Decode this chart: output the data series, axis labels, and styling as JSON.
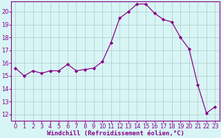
{
  "x": [
    0,
    1,
    2,
    3,
    4,
    5,
    6,
    7,
    8,
    9,
    10,
    11,
    12,
    13,
    14,
    15,
    16,
    17,
    18,
    19,
    20,
    21,
    22,
    23
  ],
  "y": [
    15.6,
    15.0,
    15.4,
    15.2,
    15.4,
    15.4,
    15.9,
    15.4,
    15.5,
    15.6,
    16.1,
    17.6,
    19.5,
    20.0,
    20.6,
    20.6,
    19.9,
    19.4,
    19.2,
    18.0,
    17.1,
    14.3,
    12.1,
    12.6
  ],
  "line_color": "#880088",
  "marker": "D",
  "marker_size": 2.2,
  "bg_color": "#d8f5f5",
  "grid_color": "#b0c8c8",
  "xlabel": "Windchill (Refroidissement éolien,°C)",
  "xlim": [
    -0.5,
    23.5
  ],
  "ylim": [
    11.5,
    20.8
  ],
  "yticks": [
    12,
    13,
    14,
    15,
    16,
    17,
    18,
    19,
    20
  ],
  "xticks": [
    0,
    1,
    2,
    3,
    4,
    5,
    6,
    7,
    8,
    9,
    10,
    11,
    12,
    13,
    14,
    15,
    16,
    17,
    18,
    19,
    20,
    21,
    22,
    23
  ],
  "axis_color": "#880088",
  "tick_color": "#880088",
  "xlabel_color": "#880088",
  "xlabel_fontsize": 6.5,
  "tick_fontsize": 6.0,
  "line_width": 0.9
}
